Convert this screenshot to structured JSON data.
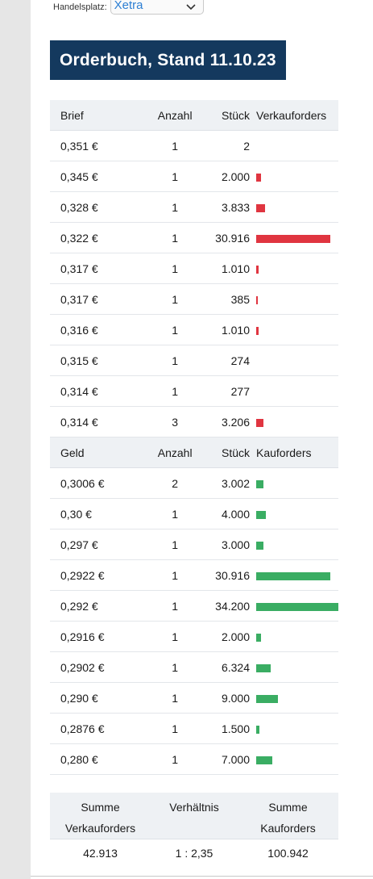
{
  "exchange": {
    "label": "Handelsplatz:",
    "value": "Xetra"
  },
  "title": "Orderbuch, Stand 11.10.23",
  "ask": {
    "headers": [
      "Brief",
      "Anzahl",
      "Stück",
      "Verkauforders"
    ],
    "rows": [
      {
        "price": "0,351 €",
        "count": "1",
        "pieces": "2",
        "share": 0.0
      },
      {
        "price": "0,345 €",
        "count": "1",
        "pieces": "2.000",
        "share": 0.06
      },
      {
        "price": "0,328 €",
        "count": "1",
        "pieces": "3.833",
        "share": 0.11
      },
      {
        "price": "0,322 €",
        "count": "1",
        "pieces": "30.916",
        "share": 0.9
      },
      {
        "price": "0,317 €",
        "count": "1",
        "pieces": "1.010",
        "share": 0.03
      },
      {
        "price": "0,317 €",
        "count": "1",
        "pieces": "385",
        "share": 0.01
      },
      {
        "price": "0,316 €",
        "count": "1",
        "pieces": "1.010",
        "share": 0.03
      },
      {
        "price": "0,315 €",
        "count": "1",
        "pieces": "274",
        "share": 0.0
      },
      {
        "price": "0,314 €",
        "count": "1",
        "pieces": "277",
        "share": 0.0
      },
      {
        "price": "0,314 €",
        "count": "3",
        "pieces": "3.206",
        "share": 0.09
      }
    ]
  },
  "bid": {
    "headers": [
      "Geld",
      "Anzahl",
      "Stück",
      "Kauforders"
    ],
    "rows": [
      {
        "price": "0,3006 €",
        "count": "2",
        "pieces": "3.002",
        "share": 0.09
      },
      {
        "price": "0,30 €",
        "count": "1",
        "pieces": "4.000",
        "share": 0.12
      },
      {
        "price": "0,297 €",
        "count": "1",
        "pieces": "3.000",
        "share": 0.09
      },
      {
        "price": "0,2922 €",
        "count": "1",
        "pieces": "30.916",
        "share": 0.9
      },
      {
        "price": "0,292 €",
        "count": "1",
        "pieces": "34.200",
        "share": 1.0
      },
      {
        "price": "0,2916 €",
        "count": "1",
        "pieces": "2.000",
        "share": 0.06
      },
      {
        "price": "0,2902 €",
        "count": "1",
        "pieces": "6.324",
        "share": 0.18
      },
      {
        "price": "0,290 €",
        "count": "1",
        "pieces": "9.000",
        "share": 0.26
      },
      {
        "price": "0,2876 €",
        "count": "1",
        "pieces": "1.500",
        "share": 0.04
      },
      {
        "price": "0,280 €",
        "count": "1",
        "pieces": "7.000",
        "share": 0.2
      }
    ]
  },
  "summary": {
    "sell_label_1": "Summe",
    "sell_label_2": "Verkauforders",
    "ratio_label": "Verhältnis",
    "buy_label_1": "Summe",
    "buy_label_2": "Kauforders",
    "sell_total": "42.913",
    "ratio": "1 : 2,35",
    "buy_total": "100.942"
  },
  "colors": {
    "sell_bar": "#e03540",
    "buy_bar": "#3aad63",
    "title_bg": "#14395e",
    "link": "#2d7fd3"
  }
}
